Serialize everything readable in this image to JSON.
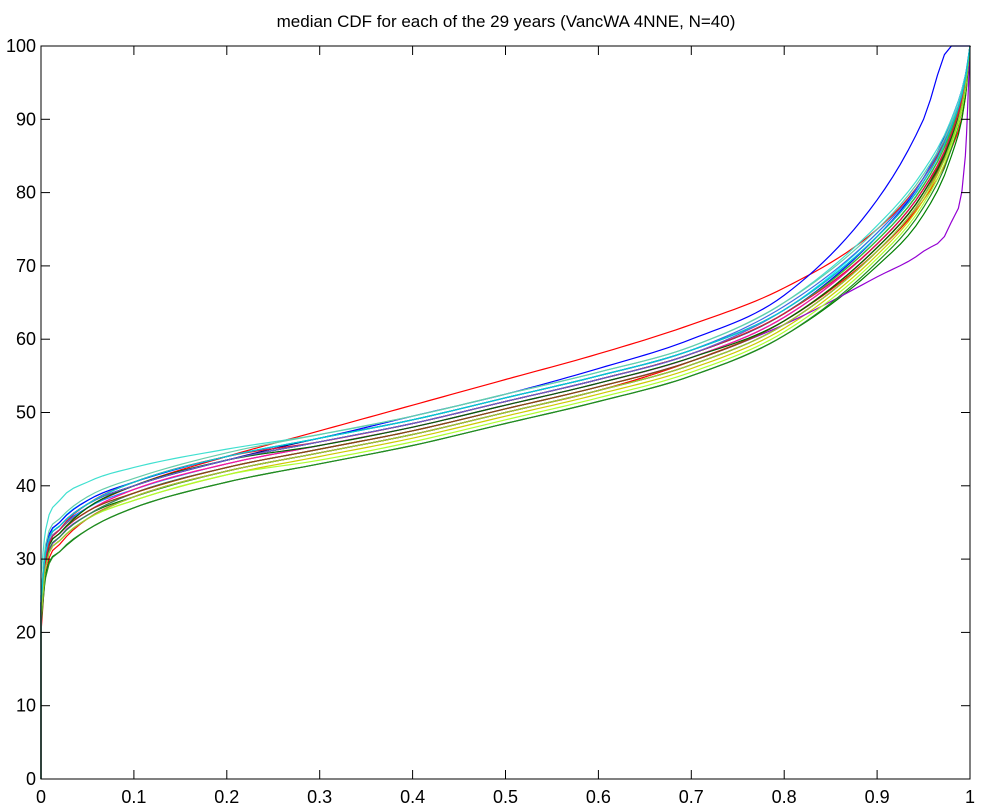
{
  "chart_data": {
    "type": "line",
    "title": "median CDF for each of the 29 years (VancWA 4NNE, N=40)",
    "xlabel": "",
    "ylabel": "",
    "xlim": [
      0,
      1
    ],
    "ylim": [
      0,
      100
    ],
    "xticks": [
      0,
      0.1,
      0.2,
      0.3,
      0.4,
      0.5,
      0.6,
      0.7,
      0.8,
      0.9,
      1
    ],
    "xtick_labels": [
      "0",
      "0.1",
      "0.2",
      "0.3",
      "0.4",
      "0.5",
      "0.6",
      "0.7",
      "0.8",
      "0.9",
      "1"
    ],
    "yticks": [
      0,
      10,
      20,
      30,
      40,
      50,
      60,
      70,
      80,
      90,
      100
    ],
    "ytick_labels": [
      "0",
      "10",
      "20",
      "30",
      "40",
      "50",
      "60",
      "70",
      "80",
      "90",
      "100"
    ],
    "grid": false,
    "legend": false,
    "x": [
      0,
      0.005,
      0.02,
      0.05,
      0.1,
      0.2,
      0.3,
      0.4,
      0.5,
      0.6,
      0.7,
      0.8,
      0.9,
      0.95,
      0.98,
      0.995,
      1
    ],
    "series": [
      {
        "color": "#ff0000",
        "values": [
          20,
          28,
          32,
          35.5,
          38.5,
          42,
          44.5,
          47,
          50,
          53,
          57,
          62.5,
          72,
          79,
          86,
          93,
          100
        ]
      },
      {
        "color": "#0000ff",
        "values": [
          23,
          30,
          34,
          37,
          40,
          43.5,
          46,
          48.5,
          51.5,
          54.5,
          58,
          63.5,
          74,
          82,
          90,
          96,
          100
        ]
      },
      {
        "color": "#008000",
        "values": [
          22,
          28,
          31,
          34,
          37,
          40.5,
          43,
          45.5,
          48.5,
          51.5,
          55,
          60.5,
          70,
          77,
          85,
          93,
          100
        ]
      },
      {
        "color": "#00ffff",
        "values": [
          24,
          31,
          35,
          38,
          40.5,
          44,
          46.5,
          49,
          52,
          55,
          58.5,
          64,
          74.5,
          82,
          89,
          95,
          100
        ]
      },
      {
        "color": "#ff00ff",
        "values": [
          23,
          30,
          33.5,
          36.5,
          39.5,
          43,
          45.5,
          48,
          51,
          54,
          57.5,
          63,
          73,
          80.5,
          88,
          95,
          100
        ]
      },
      {
        "color": "#cccc00",
        "values": [
          22,
          29,
          32.5,
          35.5,
          38,
          41.5,
          44,
          46.5,
          49.5,
          52.5,
          56,
          61.5,
          71.5,
          79,
          87,
          94,
          100
        ]
      },
      {
        "color": "#000000",
        "values": [
          24,
          31,
          34.5,
          37.5,
          40,
          43.5,
          46,
          48.5,
          51.5,
          54.5,
          58,
          63.5,
          73.5,
          81,
          88.5,
          95,
          100
        ]
      },
      {
        "color": "#ff0000",
        "values": [
          23,
          30.5,
          34,
          37,
          40,
          44,
          47.5,
          51,
          54.5,
          58,
          62,
          67,
          75,
          82,
          89,
          95,
          100
        ]
      },
      {
        "color": "#0000ff",
        "values": [
          25,
          31.5,
          35,
          38,
          40.5,
          44,
          46.5,
          49.5,
          52.5,
          56,
          60,
          66,
          79,
          90,
          100,
          100,
          100
        ]
      },
      {
        "color": "#008000",
        "values": [
          23,
          29.5,
          33,
          36,
          38.5,
          42,
          44.5,
          47,
          50,
          53,
          56.5,
          62,
          72,
          79.5,
          87,
          94,
          100
        ]
      },
      {
        "color": "#40e0d0",
        "values": [
          28,
          34,
          38,
          40.5,
          42.5,
          45,
          47,
          49.5,
          52.5,
          55.5,
          59,
          65,
          75.5,
          83,
          90,
          96,
          100
        ]
      },
      {
        "color": "#9400d3",
        "values": [
          22,
          29,
          33,
          36,
          39,
          42.5,
          45,
          47.5,
          50.5,
          53.5,
          57,
          62,
          68.5,
          72,
          76,
          85,
          100
        ]
      },
      {
        "color": "#ff8c00",
        "values": [
          23,
          30,
          33.5,
          36.5,
          39,
          42.5,
          45,
          47.5,
          50.5,
          53.5,
          57,
          62.5,
          72.5,
          80,
          88,
          95,
          100
        ]
      },
      {
        "color": "#32cd32",
        "values": [
          23,
          30,
          33.5,
          37,
          40,
          43.5,
          46,
          48.5,
          51.5,
          54.5,
          58,
          63.5,
          73.5,
          81,
          88.5,
          95,
          100
        ]
      },
      {
        "color": "#1e90ff",
        "values": [
          24,
          30.5,
          34,
          37,
          39.5,
          43,
          45.5,
          48,
          51,
          54,
          57.5,
          63,
          73,
          80.5,
          88,
          95,
          100
        ]
      },
      {
        "color": "#228b22",
        "values": [
          21,
          27.5,
          31,
          34,
          37,
          40.5,
          43,
          45.5,
          48.5,
          51.5,
          55,
          60.5,
          70.5,
          78,
          86,
          94,
          100
        ]
      },
      {
        "color": "#b22222",
        "values": [
          22,
          29,
          32.5,
          35.5,
          38.5,
          42,
          44.5,
          47,
          50,
          53,
          56.5,
          62,
          72,
          79.5,
          87.5,
          94.5,
          100
        ]
      },
      {
        "color": "#000080",
        "values": [
          24,
          31,
          34.5,
          37.5,
          40,
          43.5,
          46.5,
          49,
          52,
          55,
          58.5,
          64,
          74,
          81.5,
          89,
          95.5,
          100
        ]
      },
      {
        "color": "#adff2f",
        "values": [
          22,
          29,
          32.5,
          35.5,
          38,
          41.5,
          43.5,
          46,
          49,
          52,
          55.5,
          61,
          71,
          78.5,
          86.5,
          94,
          100
        ]
      },
      {
        "color": "#ff1493",
        "values": [
          23,
          30,
          33.5,
          36.5,
          39.5,
          43,
          45.5,
          48,
          51,
          54,
          57.5,
          63,
          73,
          80.5,
          88,
          95,
          100
        ]
      },
      {
        "color": "#2e8b57",
        "values": [
          23,
          29.5,
          33,
          36,
          39,
          42.5,
          45,
          47.5,
          50.5,
          53.5,
          57,
          62.5,
          72.5,
          80,
          87.5,
          94.5,
          100
        ]
      },
      {
        "color": "#4169e1",
        "values": [
          24,
          31,
          34.5,
          37.5,
          40.5,
          44,
          46.5,
          49,
          52,
          55,
          58.5,
          64.5,
          74.5,
          82,
          89.5,
          95.5,
          100
        ]
      },
      {
        "color": "#8b4513",
        "values": [
          23,
          30,
          33.5,
          36.5,
          39,
          42.5,
          45,
          47.5,
          50.5,
          53.5,
          57,
          62.5,
          72.5,
          80,
          88,
          95,
          100
        ]
      },
      {
        "color": "#66cdaa",
        "values": [
          25,
          32,
          35.5,
          38.5,
          41,
          44.5,
          47,
          49.5,
          52.5,
          55.5,
          59,
          65,
          75,
          82.5,
          89.5,
          95.5,
          100
        ]
      },
      {
        "color": "#006400",
        "values": [
          23,
          30,
          33.5,
          37,
          40,
          43.5,
          45.5,
          48,
          51,
          54,
          57.5,
          62.5,
          72.5,
          80,
          87.5,
          94.5,
          100
        ]
      },
      {
        "color": "#dc143c",
        "values": [
          23,
          30,
          34,
          37.5,
          40.5,
          44,
          46,
          48.5,
          51.5,
          54.5,
          58,
          63.5,
          73,
          80.5,
          88,
          95,
          100
        ]
      },
      {
        "color": "#6a5acd",
        "values": [
          24,
          31,
          34.5,
          37.5,
          40,
          43.5,
          46,
          48.5,
          51.5,
          54.5,
          58,
          64,
          74,
          81.5,
          89,
          95.5,
          100
        ]
      },
      {
        "color": "#9acd32",
        "values": [
          22,
          29,
          32.5,
          35.5,
          38.5,
          42,
          44.5,
          47,
          50,
          53,
          56.5,
          62,
          72,
          79.5,
          87,
          94.5,
          100
        ]
      },
      {
        "color": "#00ced1",
        "values": [
          24,
          31,
          34.5,
          37.5,
          40.5,
          44,
          46.5,
          49,
          52,
          55,
          58.5,
          64,
          74,
          81.5,
          89,
          95.5,
          100
        ]
      }
    ]
  }
}
